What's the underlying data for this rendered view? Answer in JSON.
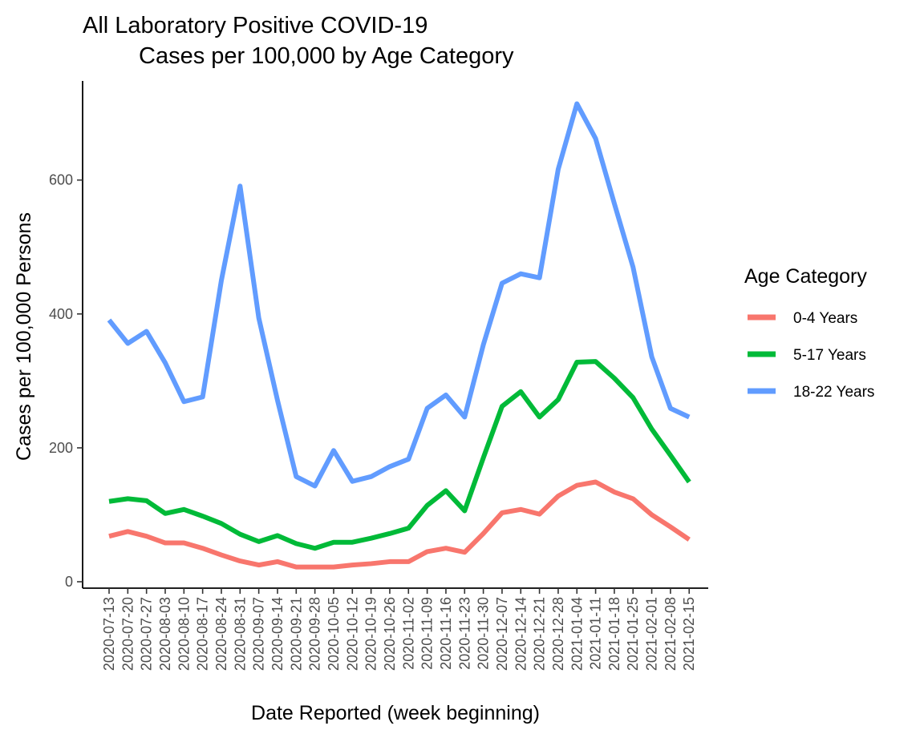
{
  "chart_data": {
    "type": "line",
    "title_line1": "All Laboratory Positive COVID-19",
    "title_line2": "Cases per 100,000 by Age Category",
    "xlabel": "Date Reported (week beginning)",
    "ylabel": "Cases per 100,000 Persons",
    "ylim": [
      0,
      720
    ],
    "yticks": [
      0,
      200,
      400,
      600
    ],
    "grid": false,
    "legend_position": "right",
    "legend_title": "Age Category",
    "x": [
      "2020-07-13",
      "2020-07-20",
      "2020-07-27",
      "2020-08-03",
      "2020-08-10",
      "2020-08-17",
      "2020-08-24",
      "2020-08-31",
      "2020-09-07",
      "2020-09-14",
      "2020-09-21",
      "2020-09-28",
      "2020-10-05",
      "2020-10-12",
      "2020-10-19",
      "2020-10-26",
      "2020-11-02",
      "2020-11-09",
      "2020-11-16",
      "2020-11-23",
      "2020-11-30",
      "2020-12-07",
      "2020-12-14",
      "2020-12-21",
      "2020-12-28",
      "2021-01-04",
      "2021-01-11",
      "2021-01-18",
      "2021-01-25",
      "2021-02-01",
      "2021-02-08",
      "2021-02-15"
    ],
    "series": [
      {
        "name": "0-4 Years",
        "color": "#F8766D",
        "values": [
          68,
          75,
          68,
          58,
          58,
          50,
          40,
          31,
          25,
          30,
          22,
          22,
          22,
          25,
          27,
          30,
          30,
          45,
          50,
          44,
          72,
          103,
          108,
          101,
          128,
          144,
          149,
          134,
          124,
          100,
          82,
          63
        ]
      },
      {
        "name": "5-17 Years",
        "color": "#00BA38",
        "values": [
          120,
          124,
          121,
          102,
          108,
          98,
          87,
          71,
          60,
          69,
          57,
          50,
          59,
          59,
          65,
          72,
          80,
          114,
          136,
          106,
          185,
          262,
          284,
          246,
          272,
          328,
          329,
          304,
          275,
          228,
          189,
          149
        ]
      },
      {
        "name": "18-22 Years",
        "color": "#619CFF",
        "values": [
          391,
          356,
          374,
          327,
          269,
          276,
          450,
          591,
          394,
          271,
          157,
          143,
          196,
          150,
          157,
          172,
          183,
          259,
          279,
          246,
          354,
          446,
          460,
          454,
          616,
          714,
          662,
          565,
          470,
          336,
          259,
          246
        ]
      }
    ]
  }
}
